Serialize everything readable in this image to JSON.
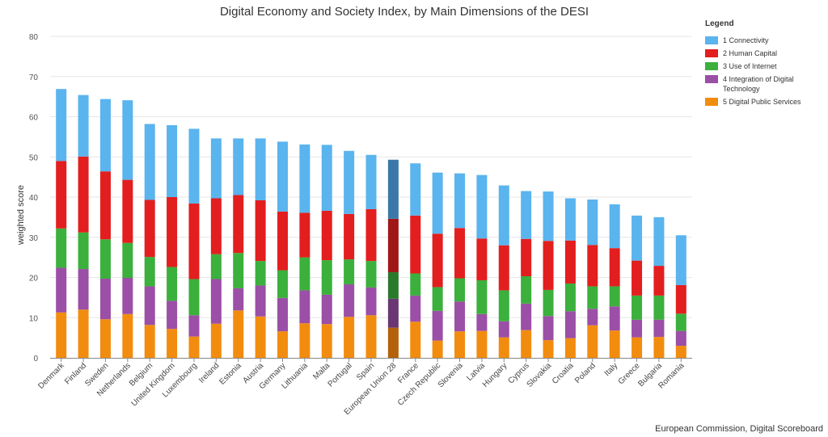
{
  "chart_data": {
    "type": "bar",
    "stacked": true,
    "title": "Digital Economy and Society Index, by Main Dimensions of the DESI",
    "xlabel": "",
    "ylabel": "weighted score",
    "ylim": [
      0,
      80
    ],
    "yticks": [
      0,
      10,
      20,
      30,
      40,
      50,
      60,
      70,
      80
    ],
    "grid": true,
    "legend_title": "Legend",
    "legend_position": "right",
    "credits": "European Commission, Digital Scoreboard",
    "highlight_category": "European Union 28",
    "categories": [
      "Denmark",
      "Finland",
      "Sweden",
      "Netherlands",
      "Belgium",
      "United Kingdom",
      "Luxembourg",
      "Ireland",
      "Estonia",
      "Austria",
      "Germany",
      "Lithuania",
      "Malta",
      "Portugal",
      "Spain",
      "European Union 28",
      "France",
      "Czech Republic",
      "Slovenia",
      "Latvia",
      "Hungary",
      "Cyprus",
      "Slovakia",
      "Croatia",
      "Poland",
      "Italy",
      "Greece",
      "Bulgaria",
      "Romania"
    ],
    "series": [
      {
        "name": "5 Digital Public Services",
        "color": "#f28c0f",
        "highlight_color": "#b4610b",
        "values": [
          11.3,
          12.0,
          9.6,
          10.9,
          8.2,
          7.2,
          5.3,
          8.5,
          11.8,
          10.3,
          6.6,
          8.6,
          8.4,
          10.2,
          10.6,
          7.5,
          9.0,
          4.3,
          6.6,
          6.7,
          5.1,
          6.9,
          4.4,
          4.9,
          8.1,
          6.8,
          5.1,
          5.2,
          3.0
        ]
      },
      {
        "name": "4 Integration of Digital Technology",
        "color": "#9b4fa6",
        "highlight_color": "#6b3773",
        "values": [
          11.1,
          10.1,
          10.1,
          9.0,
          9.6,
          7.0,
          5.3,
          11.1,
          5.5,
          7.7,
          8.3,
          8.2,
          7.3,
          8.1,
          6.9,
          7.2,
          6.5,
          7.4,
          7.4,
          4.2,
          4.0,
          6.6,
          6.0,
          6.7,
          4.1,
          6.0,
          4.4,
          4.3,
          3.7
        ]
      },
      {
        "name": "3 Use of Internet",
        "color": "#3bb03c",
        "highlight_color": "#2a7a2b",
        "values": [
          9.8,
          9.1,
          9.8,
          8.7,
          7.3,
          8.4,
          9.0,
          6.2,
          8.8,
          6.1,
          6.9,
          8.2,
          8.6,
          6.2,
          6.6,
          6.6,
          5.5,
          5.9,
          5.8,
          8.4,
          7.7,
          6.8,
          6.5,
          6.9,
          5.6,
          5.0,
          6.0,
          6.0,
          4.3
        ]
      },
      {
        "name": "2 Human Capital",
        "color": "#e31e1e",
        "highlight_color": "#a01717",
        "values": [
          16.8,
          18.9,
          16.9,
          15.7,
          14.2,
          17.4,
          18.8,
          13.9,
          14.4,
          15.1,
          14.6,
          11.1,
          12.3,
          11.3,
          12.9,
          13.3,
          14.4,
          13.3,
          12.5,
          10.4,
          11.2,
          9.3,
          12.2,
          10.7,
          10.3,
          9.5,
          8.7,
          7.4,
          7.1
        ]
      },
      {
        "name": "1 Connectivity",
        "color": "#5ab4ee",
        "highlight_color": "#3b78a8",
        "values": [
          17.9,
          15.3,
          18.0,
          19.8,
          18.9,
          17.9,
          18.6,
          14.9,
          14.1,
          15.4,
          17.4,
          17.0,
          16.4,
          15.7,
          13.5,
          14.7,
          13.0,
          15.2,
          13.6,
          15.8,
          14.9,
          11.9,
          12.3,
          10.5,
          11.3,
          10.9,
          11.2,
          12.1,
          12.4
        ]
      }
    ]
  }
}
